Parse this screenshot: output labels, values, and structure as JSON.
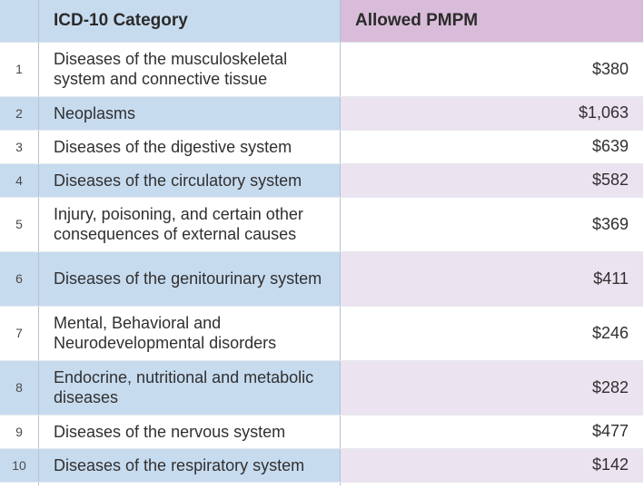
{
  "table": {
    "headers": {
      "category": "ICD-10 Category",
      "value": "Allowed PMPM"
    },
    "rows": [
      {
        "num": "1",
        "category": "Diseases of the musculoskeletal system and connective tissue",
        "value": "$380"
      },
      {
        "num": "2",
        "category": "Neoplasms",
        "value": "$1,063"
      },
      {
        "num": "3",
        "category": "Diseases of the digestive system",
        "value": "$639"
      },
      {
        "num": "4",
        "category": "Diseases of the circulatory system",
        "value": "$582"
      },
      {
        "num": "5",
        "category": "Injury, poisoning, and certain other consequences of external causes",
        "value": "$369"
      },
      {
        "num": "6",
        "category": "Diseases of the genitourinary system",
        "value": "$411"
      },
      {
        "num": "7",
        "category": "Mental, Behavioral and Neurodevelopmental disorders",
        "value": "$246"
      },
      {
        "num": "8",
        "category": "Endocrine, nutritional and metabolic diseases",
        "value": "$282"
      },
      {
        "num": "9",
        "category": "Diseases of the nervous system",
        "value": "$477"
      },
      {
        "num": "10",
        "category": "Diseases of the respiratory system",
        "value": "$142"
      }
    ]
  }
}
